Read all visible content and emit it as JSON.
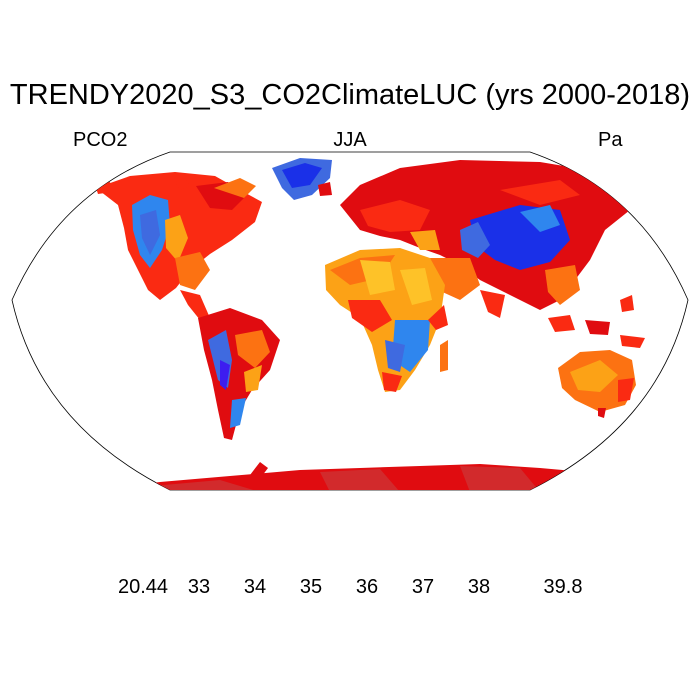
{
  "title": "TRENDY2020_S3_CO2ClimateLUC (yrs 2000-2018)",
  "subtitle_left": "PCO2",
  "subtitle_center": "JJA",
  "subtitle_right": "Pa",
  "map": {
    "projection": "Robinson",
    "background": "#ffffff",
    "ocean": "#ffffff",
    "coastline_color": "#000000"
  },
  "colorbar": {
    "colors": [
      "#3d1df0",
      "#1a30e8",
      "#3f6ae0",
      "#2f86ee",
      "#12a6f2",
      "#33c2f0",
      "#97cde9",
      "#cce7f7",
      "#ffe85a",
      "#fec228",
      "#fca216",
      "#fc7212",
      "#fa2a12",
      "#e00c10",
      "#d22a2c"
    ],
    "labels": [
      "20.44",
      "33",
      "34",
      "35",
      "36",
      "37",
      "38",
      "39.8"
    ]
  }
}
